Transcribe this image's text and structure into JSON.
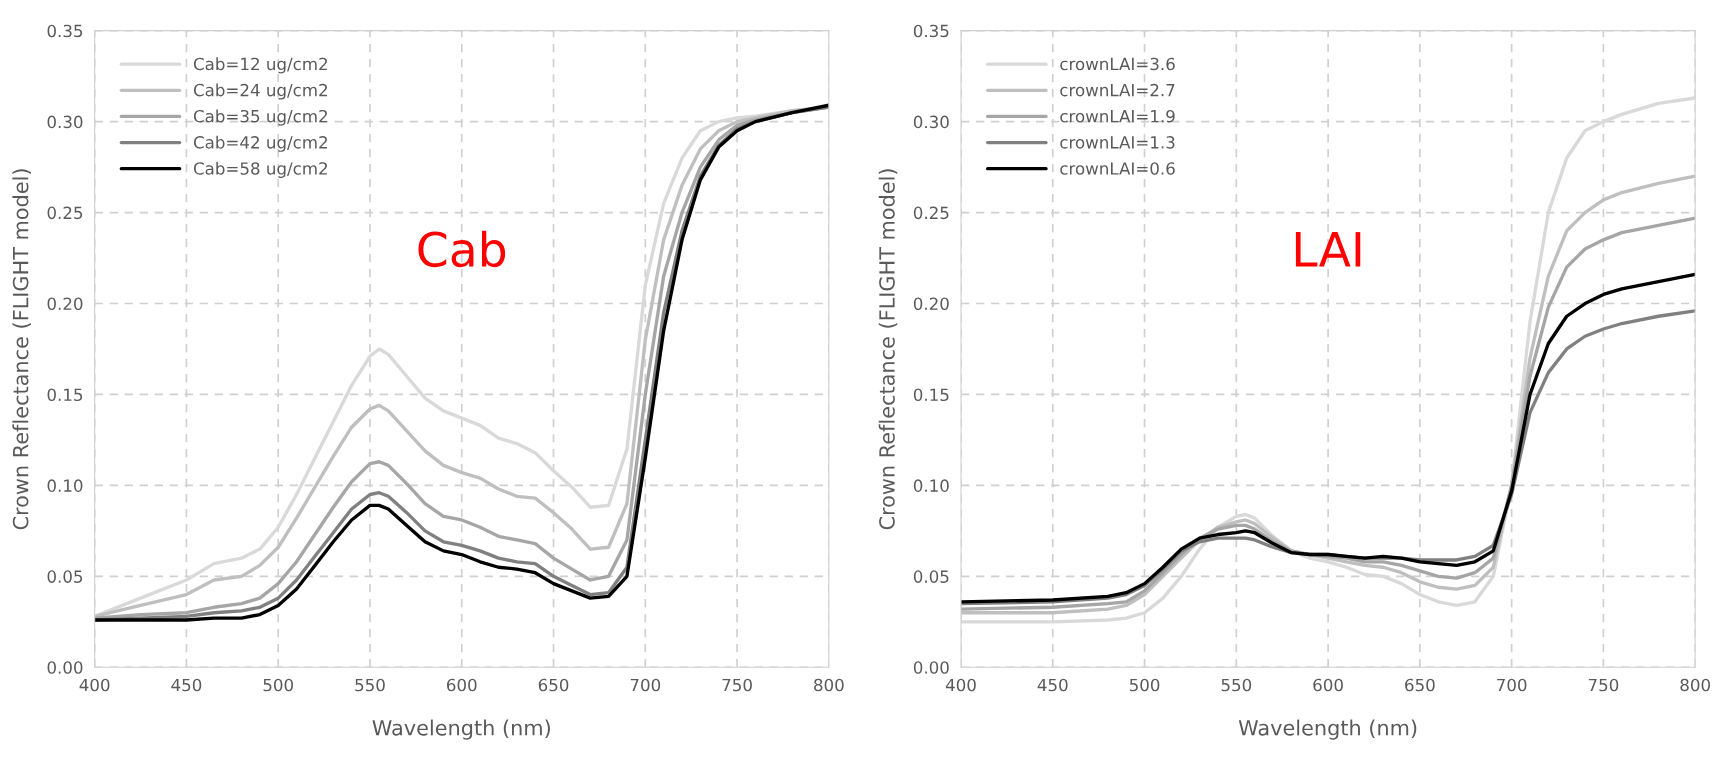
{
  "chart_data": [
    {
      "type": "line",
      "xlabel": "Wavelength (nm)",
      "ylabel": "Crown Reflectance (FLIGHT model)",
      "annotations": [
        "Cab"
      ],
      "x": [
        400,
        425,
        450,
        465,
        480,
        490,
        500,
        510,
        520,
        530,
        540,
        550,
        555,
        560,
        570,
        580,
        590,
        600,
        610,
        620,
        630,
        640,
        650,
        660,
        670,
        680,
        690,
        700,
        710,
        720,
        730,
        740,
        750,
        760,
        780,
        800
      ],
      "series": [
        {
          "name": "Cab=12 ug/cm2",
          "color": "#d9d9d9",
          "values": [
            0.028,
            0.038,
            0.048,
            0.057,
            0.06,
            0.065,
            0.077,
            0.095,
            0.115,
            0.135,
            0.155,
            0.171,
            0.175,
            0.172,
            0.16,
            0.148,
            0.141,
            0.137,
            0.133,
            0.126,
            0.123,
            0.118,
            0.108,
            0.099,
            0.088,
            0.089,
            0.12,
            0.21,
            0.255,
            0.28,
            0.295,
            0.3,
            0.302,
            0.303,
            0.306,
            0.308
          ]
        },
        {
          "name": "Cab=24 ug/cm2",
          "color": "#bfbfbf",
          "values": [
            0.028,
            0.034,
            0.04,
            0.048,
            0.05,
            0.056,
            0.066,
            0.082,
            0.099,
            0.116,
            0.132,
            0.142,
            0.144,
            0.141,
            0.13,
            0.119,
            0.111,
            0.107,
            0.104,
            0.098,
            0.094,
            0.093,
            0.085,
            0.076,
            0.065,
            0.066,
            0.09,
            0.18,
            0.235,
            0.265,
            0.285,
            0.295,
            0.3,
            0.302,
            0.306,
            0.308
          ]
        },
        {
          "name": "Cab=35 ug/cm2",
          "color": "#a6a6a6",
          "values": [
            0.027,
            0.029,
            0.03,
            0.033,
            0.035,
            0.038,
            0.046,
            0.058,
            0.073,
            0.088,
            0.102,
            0.112,
            0.113,
            0.111,
            0.101,
            0.09,
            0.083,
            0.081,
            0.077,
            0.072,
            0.07,
            0.068,
            0.06,
            0.054,
            0.048,
            0.05,
            0.07,
            0.15,
            0.215,
            0.25,
            0.275,
            0.29,
            0.298,
            0.301,
            0.305,
            0.308
          ]
        },
        {
          "name": "Cab=42 ug/cm2",
          "color": "#808080",
          "values": [
            0.026,
            0.027,
            0.028,
            0.03,
            0.031,
            0.033,
            0.038,
            0.048,
            0.061,
            0.074,
            0.087,
            0.095,
            0.096,
            0.094,
            0.085,
            0.075,
            0.069,
            0.067,
            0.064,
            0.06,
            0.058,
            0.057,
            0.05,
            0.045,
            0.04,
            0.041,
            0.055,
            0.125,
            0.195,
            0.24,
            0.27,
            0.287,
            0.296,
            0.3,
            0.305,
            0.308
          ]
        },
        {
          "name": "Cab=58 ug/cm2",
          "color": "#000000",
          "values": [
            0.026,
            0.026,
            0.026,
            0.027,
            0.027,
            0.029,
            0.034,
            0.043,
            0.056,
            0.069,
            0.081,
            0.089,
            0.089,
            0.087,
            0.078,
            0.069,
            0.064,
            0.062,
            0.058,
            0.055,
            0.054,
            0.052,
            0.046,
            0.042,
            0.038,
            0.039,
            0.05,
            0.115,
            0.185,
            0.235,
            0.268,
            0.286,
            0.295,
            0.3,
            0.305,
            0.309
          ]
        }
      ],
      "xlim": [
        400,
        800
      ],
      "xticks": [
        400,
        450,
        500,
        550,
        600,
        650,
        700,
        750,
        800
      ],
      "ylim": [
        0,
        0.35
      ],
      "yticks": [
        {
          "value": 0,
          "label": "0.00"
        },
        {
          "value": 0.05,
          "label": "0.05"
        },
        {
          "value": 0.1,
          "label": "0.10"
        },
        {
          "value": 0.15,
          "label": "0.15"
        },
        {
          "value": 0.2,
          "label": "0.20"
        },
        {
          "value": 0.25,
          "label": "0.25"
        },
        {
          "value": 0.3,
          "label": "0.30"
        },
        {
          "value": 0.35,
          "label": "0.35"
        }
      ],
      "grid": true,
      "legend": "top left",
      "line_style": "solid",
      "marker": "none"
    },
    {
      "type": "line",
      "xlabel": "Wavelength (nm)",
      "ylabel": "Crown Reflectance (FLIGHT model)",
      "annotations": [
        "LAI"
      ],
      "x": [
        400,
        450,
        480,
        490,
        500,
        510,
        520,
        530,
        540,
        550,
        555,
        560,
        570,
        580,
        590,
        600,
        610,
        620,
        630,
        640,
        650,
        660,
        670,
        680,
        690,
        700,
        710,
        720,
        730,
        740,
        750,
        760,
        780,
        800
      ],
      "series": [
        {
          "name": "crownLAI=3.6",
          "color": "#d9d9d9",
          "values": [
            0.025,
            0.025,
            0.026,
            0.027,
            0.03,
            0.038,
            0.05,
            0.065,
            0.077,
            0.083,
            0.084,
            0.082,
            0.072,
            0.064,
            0.06,
            0.058,
            0.055,
            0.051,
            0.05,
            0.046,
            0.04,
            0.036,
            0.034,
            0.036,
            0.05,
            0.1,
            0.19,
            0.25,
            0.28,
            0.295,
            0.3,
            0.304,
            0.31,
            0.313
          ]
        },
        {
          "name": "crownLAI=2.7",
          "color": "#bfbfbf",
          "values": [
            0.03,
            0.03,
            0.032,
            0.034,
            0.04,
            0.05,
            0.06,
            0.07,
            0.077,
            0.08,
            0.081,
            0.079,
            0.071,
            0.064,
            0.062,
            0.06,
            0.058,
            0.056,
            0.055,
            0.052,
            0.047,
            0.044,
            0.043,
            0.045,
            0.055,
            0.1,
            0.17,
            0.215,
            0.24,
            0.25,
            0.257,
            0.261,
            0.266,
            0.27
          ]
        },
        {
          "name": "crownLAI=1.9",
          "color": "#a6a6a6",
          "values": [
            0.032,
            0.033,
            0.035,
            0.036,
            0.042,
            0.052,
            0.062,
            0.071,
            0.076,
            0.078,
            0.078,
            0.076,
            0.069,
            0.064,
            0.062,
            0.061,
            0.06,
            0.058,
            0.058,
            0.056,
            0.053,
            0.05,
            0.049,
            0.052,
            0.06,
            0.1,
            0.16,
            0.198,
            0.22,
            0.23,
            0.235,
            0.239,
            0.243,
            0.247
          ]
        },
        {
          "name": "crownLAI=1.3",
          "color": "#808080",
          "values": [
            0.035,
            0.036,
            0.038,
            0.04,
            0.045,
            0.054,
            0.064,
            0.069,
            0.071,
            0.071,
            0.071,
            0.07,
            0.066,
            0.063,
            0.062,
            0.062,
            0.061,
            0.06,
            0.06,
            0.06,
            0.059,
            0.059,
            0.059,
            0.061,
            0.067,
            0.095,
            0.14,
            0.162,
            0.175,
            0.182,
            0.186,
            0.189,
            0.193,
            0.196
          ]
        },
        {
          "name": "crownLAI=0.6",
          "color": "#000000",
          "values": [
            0.036,
            0.037,
            0.039,
            0.041,
            0.046,
            0.055,
            0.065,
            0.071,
            0.073,
            0.074,
            0.075,
            0.074,
            0.068,
            0.063,
            0.062,
            0.062,
            0.061,
            0.06,
            0.061,
            0.06,
            0.058,
            0.057,
            0.056,
            0.058,
            0.064,
            0.097,
            0.15,
            0.178,
            0.193,
            0.2,
            0.205,
            0.208,
            0.212,
            0.216
          ]
        }
      ],
      "xlim": [
        400,
        800
      ],
      "xticks": [
        400,
        450,
        500,
        550,
        600,
        650,
        700,
        750,
        800
      ],
      "ylim": [
        0,
        0.35
      ],
      "yticks": [
        {
          "value": 0,
          "label": "0.00"
        },
        {
          "value": 0.05,
          "label": "0.05"
        },
        {
          "value": 0.1,
          "label": "0.10"
        },
        {
          "value": 0.15,
          "label": "0.15"
        },
        {
          "value": 0.2,
          "label": "0.20"
        },
        {
          "value": 0.25,
          "label": "0.25"
        },
        {
          "value": 0.3,
          "label": "0.30"
        },
        {
          "value": 0.35,
          "label": "0.35"
        }
      ],
      "grid": true,
      "legend": "top left",
      "line_style": "solid",
      "marker": "none"
    }
  ]
}
